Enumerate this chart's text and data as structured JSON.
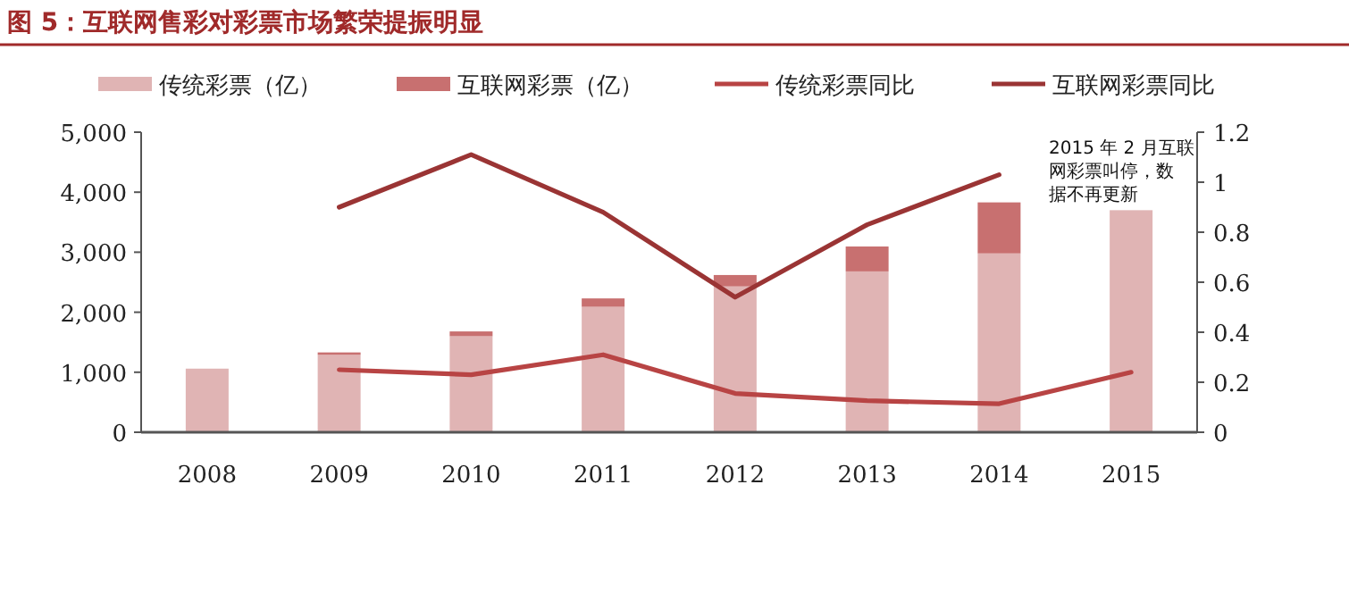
{
  "chart_data": {
    "type": "bar",
    "stacked": true,
    "title": "图 5：互联网售彩对彩票市场繁荣提振明显",
    "categories": [
      "2008",
      "2009",
      "2010",
      "2011",
      "2012",
      "2013",
      "2014",
      "2015"
    ],
    "series": [
      {
        "name": "传统彩票（亿）",
        "color": "#e0b4b4",
        "values": [
          1060,
          1290,
          1600,
          2090,
          2430,
          2680,
          2980,
          3700
        ]
      },
      {
        "name": "互联网彩票（亿）",
        "color": "#c87070",
        "values": [
          null,
          40,
          80,
          140,
          190,
          415,
          850,
          null
        ]
      },
      {
        "name": "传统彩票同比",
        "type": "line",
        "axis": "y2",
        "color": "#b84444",
        "values": [
          null,
          0.25,
          0.23,
          0.31,
          0.155,
          0.126,
          0.114,
          0.24
        ]
      },
      {
        "name": "互联网彩票同比",
        "type": "line",
        "axis": "y2",
        "color": "#9a3434",
        "values": [
          null,
          0.9,
          1.11,
          0.88,
          0.54,
          0.83,
          1.03,
          null
        ]
      }
    ],
    "ylim": [
      0,
      5000
    ],
    "yticks": [
      0,
      {
        "value": 1000,
        "label": "1,000"
      },
      {
        "value": 2000,
        "label": "2,000"
      },
      {
        "value": 3000,
        "label": "3,000"
      },
      {
        "value": 4000,
        "label": "4,000"
      },
      {
        "value": 5000,
        "label": "5,000"
      }
    ],
    "y2lim": [
      0,
      1.2
    ],
    "y2ticks": [
      0,
      0.2,
      0.4,
      0.6,
      0.8,
      1,
      1.2
    ],
    "legend": "top",
    "annotations": [
      "2015 年 2 月互联网彩票叫停，数据不再更新"
    ]
  }
}
